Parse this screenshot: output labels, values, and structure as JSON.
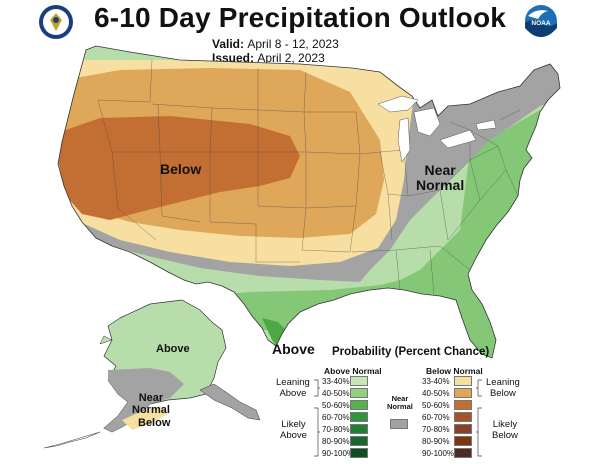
{
  "title": "6-10 Day Precipitation Outlook",
  "valid_label": "Valid:",
  "valid_value": "April 8 - 12, 2023",
  "issued_label": "Issued:",
  "issued_value": "April 2, 2023",
  "logos": {
    "left": "doc-seal-icon",
    "right": "noaa-logo-icon"
  },
  "map_labels": {
    "below_west": "Below",
    "near_normal_east_1": "Near",
    "near_normal_east_2": "Normal",
    "above_texas": "Above",
    "above_alaska": "Above",
    "near_normal_alaska_1": "Near",
    "near_normal_alaska_2": "Normal",
    "below_alaska": "Below"
  },
  "colors": {
    "below_33_40": "#f6dfa0",
    "below_40_50": "#dfa75a",
    "below_50_60": "#c36f33",
    "near_normal": "#a3a3a3",
    "above_33_40": "#b7deaa",
    "above_40_50": "#84c877",
    "above_50_60": "#4ca946"
  },
  "legend": {
    "title": "Probability (Percent Chance)",
    "above_header": "Above Normal",
    "below_header": "Below Normal",
    "leaning_above_1": "Leaning",
    "leaning_above_2": "Above",
    "likely_above_1": "Likely",
    "likely_above_2": "Above",
    "leaning_below_1": "Leaning",
    "leaning_below_2": "Below",
    "likely_below_1": "Likely",
    "likely_below_2": "Below",
    "near_1": "Near",
    "near_2": "Normal",
    "above_rows": [
      {
        "pct": "33-40%",
        "color": "#c7e6b4"
      },
      {
        "pct": "40-50%",
        "color": "#93cf7e"
      },
      {
        "pct": "50-60%",
        "color": "#56b24c"
      },
      {
        "pct": "60-70%",
        "color": "#2f9640"
      },
      {
        "pct": "70-80%",
        "color": "#1f7f36"
      },
      {
        "pct": "80-90%",
        "color": "#176a2c"
      },
      {
        "pct": "90-100%",
        "color": "#0f4f1f"
      }
    ],
    "below_rows": [
      {
        "pct": "33-40%",
        "color": "#f6dfa0"
      },
      {
        "pct": "40-50%",
        "color": "#dfa75a"
      },
      {
        "pct": "50-60%",
        "color": "#c36f33"
      },
      {
        "pct": "60-70%",
        "color": "#a6522d"
      },
      {
        "pct": "70-80%",
        "color": "#8b3f2b"
      },
      {
        "pct": "80-90%",
        "color": "#7a3613"
      },
      {
        "pct": "90-100%",
        "color": "#4f2a22"
      }
    ]
  }
}
